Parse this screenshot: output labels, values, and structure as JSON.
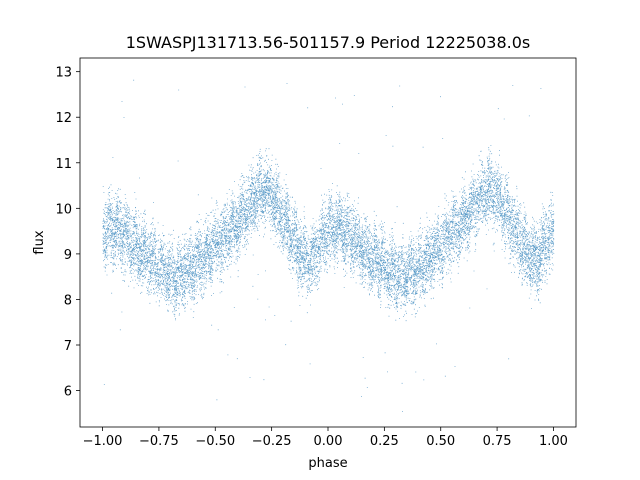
{
  "chart_data": {
    "type": "scatter",
    "title": "1SWASPJ131713.56-501157.9 Period 12225038.0s",
    "xlabel": "phase",
    "ylabel": "flux",
    "xlim": [
      -1.1,
      1.1
    ],
    "ylim": [
      5.2,
      13.3
    ],
    "xticks": [
      -1.0,
      -0.75,
      -0.5,
      -0.25,
      0.0,
      0.25,
      0.5,
      0.75,
      1.0
    ],
    "xtick_labels": [
      "−1.00",
      "−0.75",
      "−0.50",
      "−0.25",
      "0.00",
      "0.25",
      "0.50",
      "0.75",
      "1.00"
    ],
    "yticks": [
      6,
      7,
      8,
      9,
      10,
      11,
      12,
      13
    ],
    "ytick_labels": [
      "6",
      "7",
      "8",
      "9",
      "10",
      "11",
      "12",
      "13"
    ],
    "grid": false,
    "marker_color": "#1f77b4",
    "series": [
      {
        "name": "",
        "x_range": [
          -1.0,
          1.0
        ],
        "periodic_in_phase": true,
        "mean_flux_profile": {
          "phase": [
            0.0,
            0.04,
            0.08,
            0.12,
            0.16,
            0.2,
            0.24,
            0.28,
            0.32,
            0.36,
            0.4,
            0.44,
            0.48,
            0.52,
            0.56,
            0.6,
            0.64,
            0.68,
            0.72,
            0.76,
            0.8,
            0.84,
            0.88,
            0.92,
            0.96,
            1.0
          ],
          "flux": [
            9.5,
            9.6,
            9.5,
            9.3,
            9.1,
            8.9,
            8.8,
            8.6,
            8.5,
            8.6,
            8.7,
            8.9,
            9.1,
            9.3,
            9.5,
            9.7,
            10.0,
            10.3,
            10.4,
            10.2,
            9.8,
            9.4,
            9.0,
            8.8,
            9.2,
            9.5
          ]
        },
        "scatter_half_width": 0.65,
        "approx_point_count": 14000,
        "outlier_range": [
          5.5,
          12.9
        ]
      }
    ]
  }
}
